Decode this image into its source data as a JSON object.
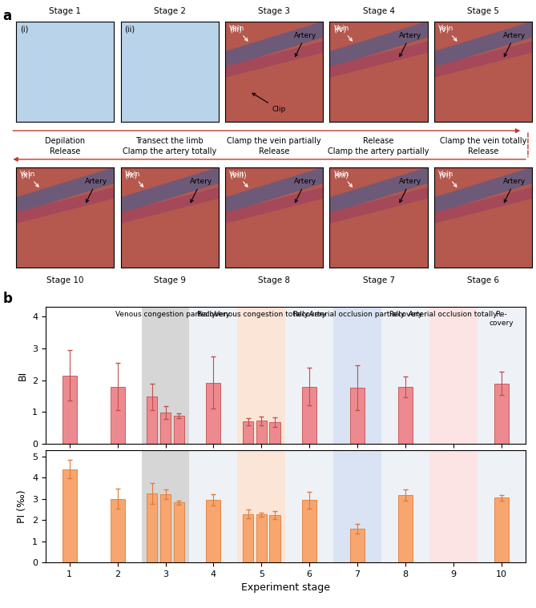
{
  "panel_a": {
    "label": "a",
    "stages": [
      {
        "title": "Stage 1",
        "index": "(i)",
        "caption": "Depilation",
        "pointers": []
      },
      {
        "title": "Stage 2",
        "index": "(ii)",
        "caption": "Transect the limb",
        "pointers": []
      },
      {
        "title": "Stage 3",
        "index": "(iii)",
        "caption": "Clamp the vein partially",
        "pointers": [
          "Vein",
          "Artery",
          "Clip"
        ]
      },
      {
        "title": "Stage 4",
        "index": "(iv)",
        "caption": "Release",
        "pointers": [
          "Vein",
          "Artery"
        ]
      },
      {
        "title": "Stage 5",
        "index": "(v)",
        "caption": "Clamp the vein totally",
        "pointers": [
          "Vein",
          "Artery"
        ]
      },
      {
        "title": "Stage 6",
        "index": "(vi)",
        "caption": "Release",
        "pointers": [
          "Vein",
          "Artery"
        ]
      },
      {
        "title": "Stage 7",
        "index": "(vii)",
        "caption": "Clamp the artery partially",
        "pointers": [
          "Vein",
          "Artery"
        ]
      },
      {
        "title": "Stage 8",
        "index": "(viii)",
        "caption": "Release",
        "pointers": [
          "Vein",
          "Artery"
        ]
      },
      {
        "title": "Stage 9",
        "index": "(ix)",
        "caption": "Clamp the artery totally",
        "pointers": [
          "Vein",
          "Artery"
        ]
      },
      {
        "title": "Stage 10",
        "index": "(x)",
        "caption": "Release",
        "pointers": [
          "Vein",
          "Artery"
        ]
      }
    ]
  },
  "panel_b": {
    "label": "b"
  },
  "chart_data": [
    {
      "type": "bar",
      "ylabel": "BI",
      "color": "#ec8a8f",
      "x": [
        1,
        2,
        3,
        4,
        5,
        6,
        7,
        8,
        9,
        10
      ],
      "values": [
        [
          2.15
        ],
        [
          1.8
        ],
        [
          1.48,
          0.98,
          0.88
        ],
        [
          1.92
        ],
        [
          0.7,
          0.72,
          0.68
        ],
        [
          1.8
        ],
        [
          1.77
        ],
        [
          1.78
        ],
        null,
        [
          1.9
        ]
      ],
      "errors": [
        [
          0.8
        ],
        [
          0.75
        ],
        [
          0.42,
          0.2,
          0.08
        ],
        [
          0.82
        ],
        [
          0.12,
          0.15,
          0.15
        ],
        [
          0.6
        ],
        [
          0.7
        ],
        [
          0.33
        ],
        null,
        [
          0.37
        ]
      ],
      "xlim": [
        0.5,
        10.5
      ],
      "xticks": [
        1,
        2,
        3,
        4,
        5,
        6,
        7,
        8,
        9,
        10
      ],
      "ylim": [
        0,
        4.3
      ],
      "yticks": [
        0,
        1,
        2,
        3,
        4
      ],
      "tick_labels": "y",
      "regions": [
        {
          "x": 3,
          "label": "Venous congestion partially",
          "color": "#d6d6d6"
        },
        {
          "x": 4,
          "label": "Recovery",
          "color": "#eef1f5"
        },
        {
          "x": 5,
          "label": "Venous congestion totally",
          "color": "#fbe5d6"
        },
        {
          "x": 6,
          "label": "Recovery",
          "color": "#eef1f5"
        },
        {
          "x": 7,
          "label": "Arterial occlusion partially",
          "color": "#dae3f3"
        },
        {
          "x": 8,
          "label": "Recovery",
          "color": "#eef1f5"
        },
        {
          "x": 9,
          "label": "Arterial occlusion totally",
          "color": "#fde4e4"
        },
        {
          "x": 10,
          "label": "Re-\ncovery",
          "color": "#eef1f5"
        }
      ]
    },
    {
      "type": "bar",
      "ylabel": "PI (‰)",
      "xlabel": "Experiment stage",
      "color": "#f6a66e",
      "x": [
        1,
        2,
        3,
        4,
        5,
        6,
        7,
        8,
        9,
        10
      ],
      "values": [
        [
          4.4
        ],
        [
          3.0
        ],
        [
          3.25,
          3.2,
          2.82
        ],
        [
          2.95
        ],
        [
          2.28,
          2.25,
          2.23
        ],
        [
          2.93
        ],
        [
          1.6
        ],
        [
          3.18
        ],
        null,
        [
          3.05
        ]
      ],
      "errors": [
        [
          0.45
        ],
        [
          0.48
        ],
        [
          0.5,
          0.22,
          0.1
        ],
        [
          0.28
        ],
        [
          0.22,
          0.1,
          0.18
        ],
        [
          0.4
        ],
        [
          0.22
        ],
        [
          0.27
        ],
        null,
        [
          0.13
        ]
      ],
      "xlim": [
        0.5,
        10.5
      ],
      "xticks": [
        1,
        2,
        3,
        4,
        5,
        6,
        7,
        8,
        9,
        10
      ],
      "ylim": [
        0,
        5.3
      ],
      "yticks": [
        0,
        1,
        2,
        3,
        4,
        5
      ],
      "regions": [
        {
          "x": 3,
          "color": "#d6d6d6"
        },
        {
          "x": 4,
          "color": "#eef1f5"
        },
        {
          "x": 5,
          "color": "#fbe5d6"
        },
        {
          "x": 6,
          "color": "#eef1f5"
        },
        {
          "x": 7,
          "color": "#dae3f3"
        },
        {
          "x": 8,
          "color": "#eef1f5"
        },
        {
          "x": 9,
          "color": "#fde4e4"
        },
        {
          "x": 10,
          "color": "#eef1f5"
        }
      ]
    }
  ]
}
